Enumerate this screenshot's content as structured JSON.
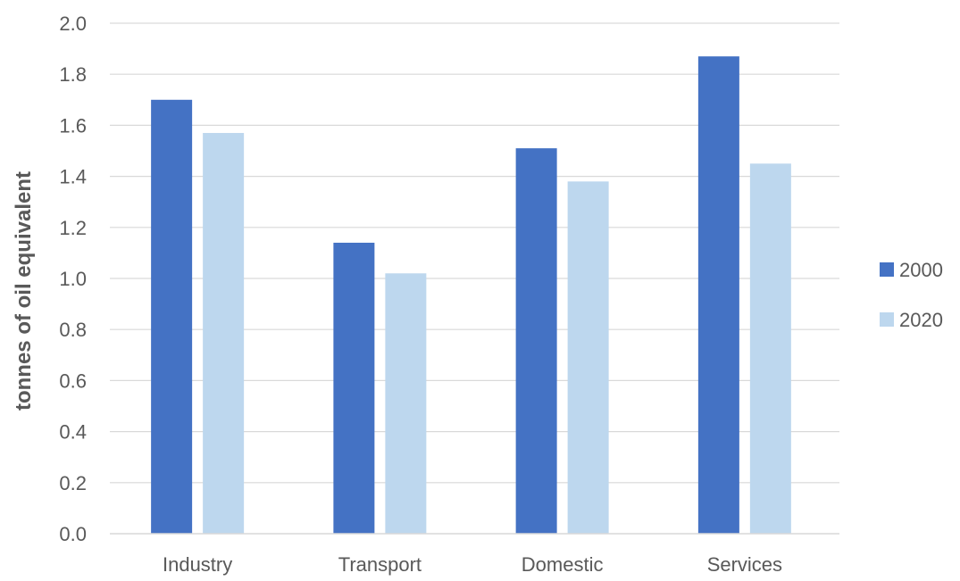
{
  "chart_data": {
    "type": "bar",
    "title": "",
    "xlabel": "",
    "ylabel": "tonnes of oil equivalent",
    "categories": [
      "Industry",
      "Transport",
      "Domestic",
      "Services"
    ],
    "series": [
      {
        "name": "2000",
        "color": "#4472c4",
        "values": [
          1.7,
          1.14,
          1.51,
          1.87
        ]
      },
      {
        "name": "2020",
        "color": "#bdd7ee",
        "values": [
          1.57,
          1.02,
          1.38,
          1.45
        ]
      }
    ],
    "ylim": [
      0,
      2.0
    ],
    "yticks": [
      "0.0",
      "0.2",
      "0.4",
      "0.6",
      "0.8",
      "1.0",
      "1.2",
      "1.4",
      "1.6",
      "1.8",
      "2.0"
    ],
    "grid": true,
    "legend_position": "right"
  }
}
